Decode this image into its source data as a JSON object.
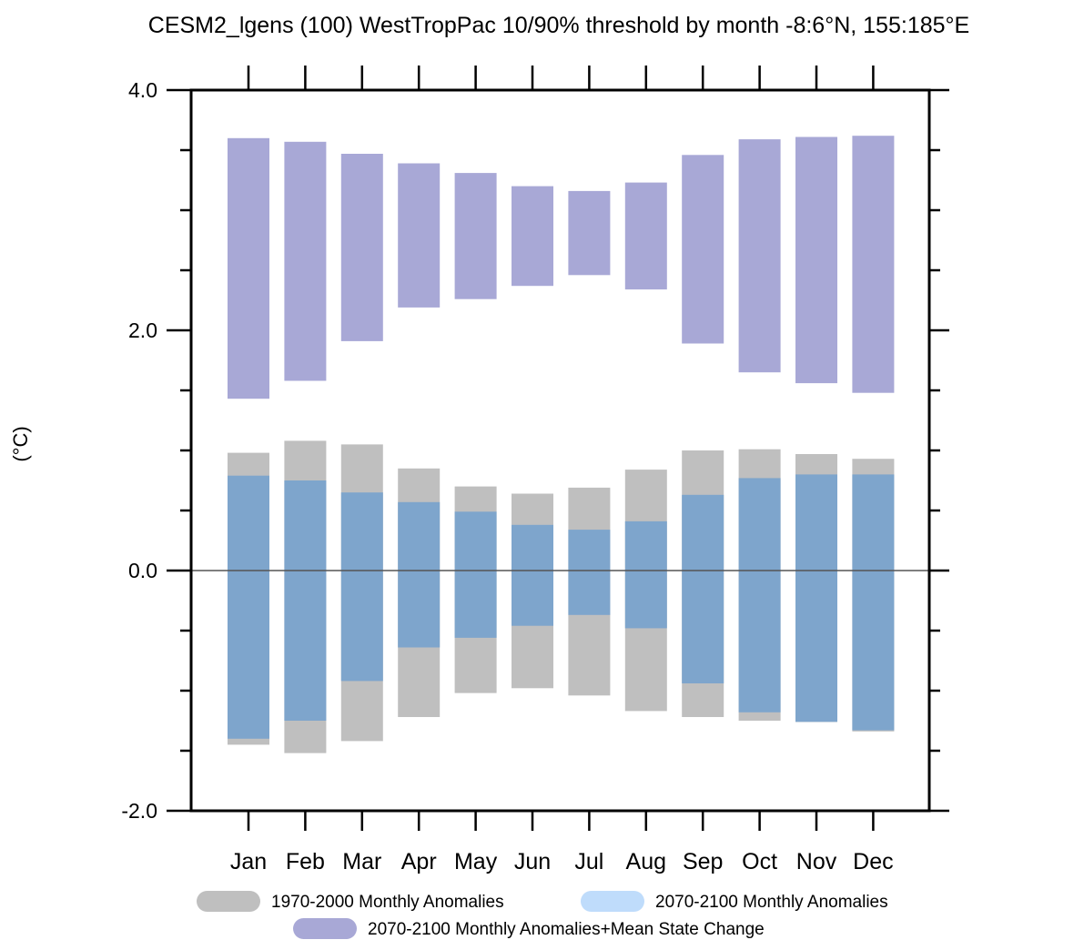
{
  "colors": {
    "hist": "#bfbfbf",
    "future": "#7ea5cc",
    "future_legend": "#bfdcfb",
    "shift": "#a8a8d6",
    "zero_line": "#555555",
    "axis": "#000000"
  },
  "chart_data": {
    "type": "bar",
    "title": "CESM2_lgens (100) WestTropPac 10/90% threshold by month  -8:6°N, 155:185°E",
    "ylabel": "(°C)",
    "xlabel": "",
    "ylim": [
      -2.0,
      4.0
    ],
    "yticks": [
      -2.0,
      0.0,
      2.0,
      4.0
    ],
    "ytick_labels": [
      "-2.0",
      "0.0",
      "2.0",
      "4.0"
    ],
    "y_minor_step": 0.5,
    "categories": [
      "Jan",
      "Feb",
      "Mar",
      "Apr",
      "May",
      "Jun",
      "Jul",
      "Aug",
      "Sep",
      "Oct",
      "Nov",
      "Dec"
    ],
    "series": [
      {
        "name": "1970-2000 Monthly Anomalies",
        "low": [
          -1.45,
          -1.52,
          -1.42,
          -1.22,
          -1.02,
          -0.98,
          -1.04,
          -1.17,
          -1.22,
          -1.25,
          -1.26,
          -1.34
        ],
        "high": [
          0.98,
          1.08,
          1.05,
          0.85,
          0.7,
          0.64,
          0.69,
          0.84,
          1.0,
          1.01,
          0.97,
          0.93
        ]
      },
      {
        "name": "2070-2100 Monthly Anomalies",
        "low": [
          -1.4,
          -1.25,
          -0.92,
          -0.64,
          -0.56,
          -0.46,
          -0.37,
          -0.48,
          -0.94,
          -1.18,
          -1.26,
          -1.33
        ],
        "high": [
          0.79,
          0.75,
          0.65,
          0.57,
          0.49,
          0.38,
          0.34,
          0.41,
          0.63,
          0.77,
          0.8,
          0.8
        ]
      },
      {
        "name": "2070-2100 Monthly Anomalies+Mean State Change",
        "low": [
          1.43,
          1.58,
          1.91,
          2.19,
          2.26,
          2.37,
          2.46,
          2.34,
          1.89,
          1.65,
          1.56,
          1.48
        ],
        "high": [
          3.6,
          3.57,
          3.47,
          3.39,
          3.31,
          3.2,
          3.16,
          3.23,
          3.46,
          3.59,
          3.61,
          3.62
        ]
      }
    ],
    "legend": {
      "position": "bottom",
      "entries": [
        "1970-2000 Monthly Anomalies",
        "2070-2100 Monthly Anomalies",
        "2070-2100 Monthly Anomalies+Mean State Change"
      ]
    },
    "grid": false
  }
}
